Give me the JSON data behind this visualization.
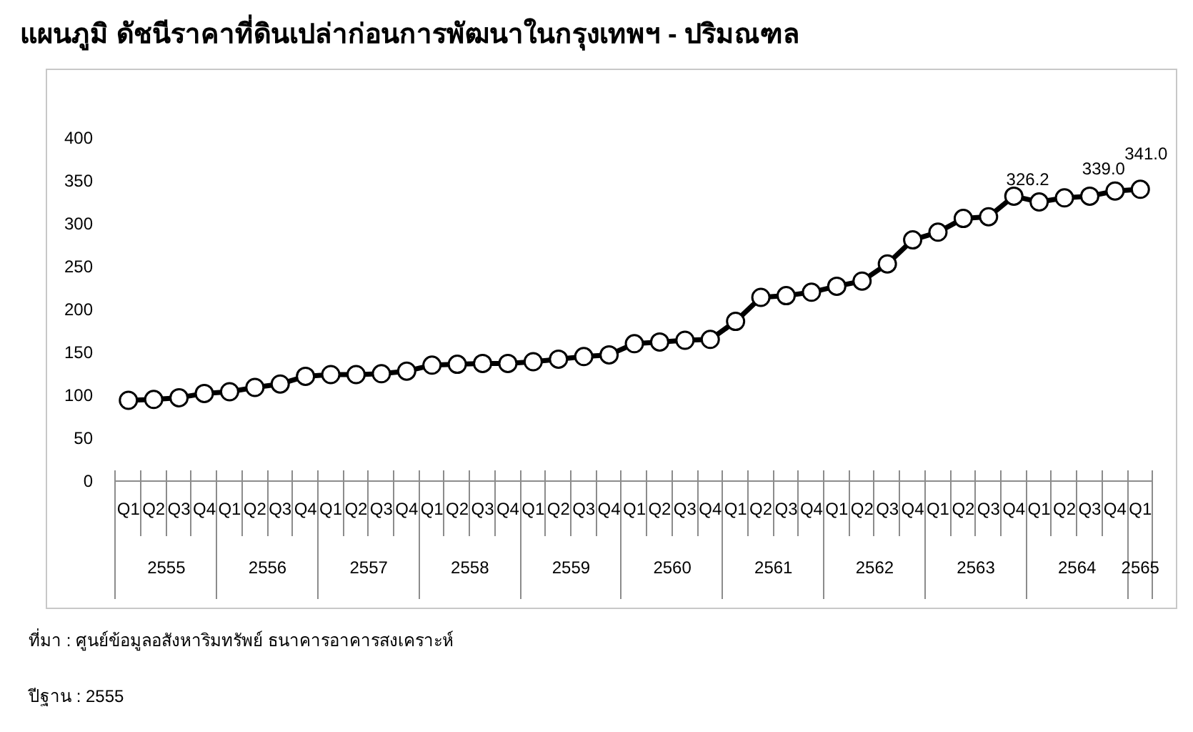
{
  "chart_data": {
    "type": "line",
    "title": "แผนภูมิ  ดัชนีราคาที่ดินเปล่าก่อนการพัฒนาในกรุงเทพฯ - ปริมณฑล",
    "categories": [
      "Q1",
      "Q2",
      "Q3",
      "Q4",
      "Q1",
      "Q2",
      "Q3",
      "Q4",
      "Q1",
      "Q2",
      "Q3",
      "Q4",
      "Q1",
      "Q2",
      "Q3",
      "Q4",
      "Q1",
      "Q2",
      "Q3",
      "Q4",
      "Q1",
      "Q2",
      "Q3",
      "Q4",
      "Q1",
      "Q2",
      "Q3",
      "Q4",
      "Q1",
      "Q2",
      "Q3",
      "Q4",
      "Q1",
      "Q2",
      "Q3",
      "Q4",
      "Q1",
      "Q2",
      "Q3",
      "Q4",
      "Q1"
    ],
    "series": [
      {
        "color": "#000000",
        "values": [
          95,
          96,
          98,
          103,
          105,
          110,
          114,
          123,
          125,
          125,
          126,
          129,
          136,
          137,
          138,
          138,
          140,
          143,
          146,
          148,
          161,
          163,
          165,
          166,
          187,
          215,
          217,
          221,
          228,
          234,
          254,
          282,
          291,
          307,
          309,
          333,
          326.2,
          331,
          333,
          339.0,
          341.0
        ],
        "value_labels": [
          null,
          null,
          null,
          null,
          null,
          null,
          null,
          null,
          null,
          null,
          null,
          null,
          null,
          null,
          null,
          null,
          null,
          null,
          null,
          null,
          null,
          null,
          null,
          null,
          null,
          null,
          null,
          null,
          null,
          null,
          null,
          null,
          null,
          null,
          null,
          null,
          "326.2",
          null,
          null,
          "339.0",
          "341.0"
        ]
      }
    ],
    "ylim": [
      0,
      400
    ],
    "yticks": [
      0,
      50,
      100,
      150,
      200,
      250,
      300,
      350,
      400
    ],
    "grid": false,
    "legend": false,
    "marker": "circle",
    "line_style": "solid",
    "annotations": [
      "2555",
      "2556",
      "2557",
      "2558",
      "2559",
      "2560",
      "2561",
      "2562",
      "2563",
      "2564",
      "2565",
      "ที่มา : ศูนย์ข้อมูลอสังหาริมทรัพย์ ธนาคารอาคารสงเคราะห์",
      "ปีฐาน : 2555"
    ]
  }
}
